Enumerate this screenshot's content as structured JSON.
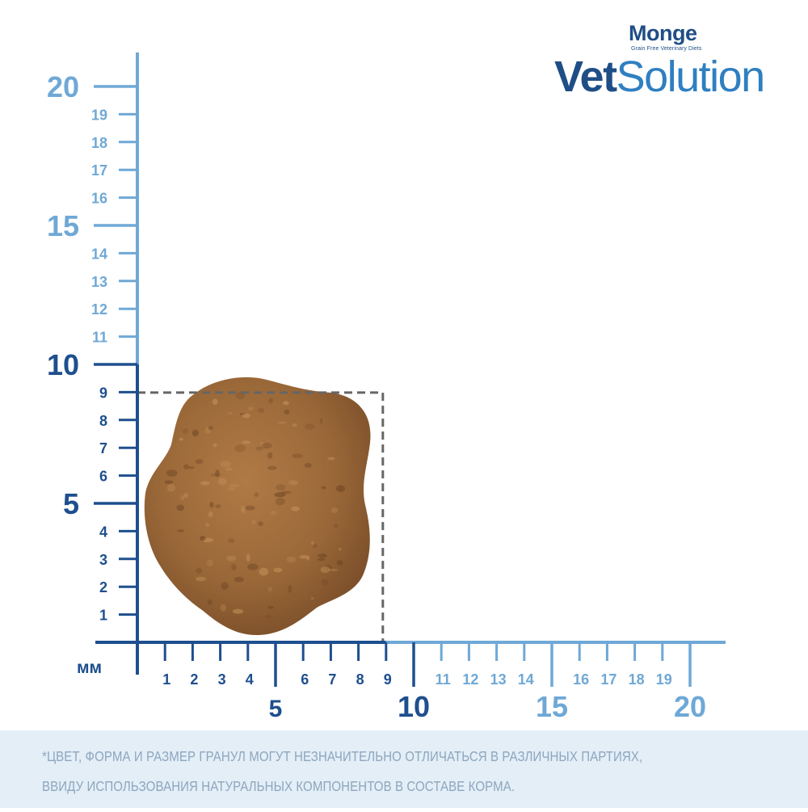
{
  "brand": {
    "maker": "Monge",
    "maker_tagline": "Grain Free Veterinary Diets",
    "product_bold": "Vet",
    "product_regular": "Solution"
  },
  "ruler": {
    "unit": "мм",
    "vertical_major_labels": [
      "5",
      "10",
      "15",
      "20"
    ],
    "vertical_minor_labels": [
      "1",
      "2",
      "3",
      "4",
      "6",
      "7",
      "8",
      "9",
      "11",
      "12",
      "13",
      "14",
      "16",
      "17",
      "18",
      "19"
    ],
    "horizontal_major_labels": [
      "5",
      "10",
      "15",
      "20"
    ],
    "horizontal_minor_labels": [
      "1",
      "2",
      "3",
      "4",
      "6",
      "7",
      "8",
      "9",
      "11",
      "12",
      "13",
      "14",
      "16",
      "17",
      "18",
      "19"
    ],
    "kibble_box_mm": 9
  },
  "disclaimer": {
    "line1": "*ЦВЕТ, ФОРМА И РАЗМЕР ГРАНУЛ МОГУТ НЕЗНАЧИТЕЛЬНО ОТЛИЧАТЬСЯ В РАЗЛИЧНЫХ ПАРТИЯХ,",
    "line2": "ВВИДУ ИСПОЛЬЗОВАНИЯ НАТУРАЛЬНЫХ КОМПОНЕНТОВ В СОСТАВЕ КОРМА."
  },
  "colors": {
    "dark_blue": "#1e4f8e",
    "light_blue": "#6fa8d6",
    "brand_navy": "#1f4e86",
    "brand_light": "#2f7fc1",
    "box_dash": "#666666",
    "footer_bg": "#e3eef7",
    "footer_text": "#8ea6bd",
    "kibble": "#9a6838",
    "kibble_dark": "#6e4524",
    "kibble_light": "#c4925a"
  }
}
